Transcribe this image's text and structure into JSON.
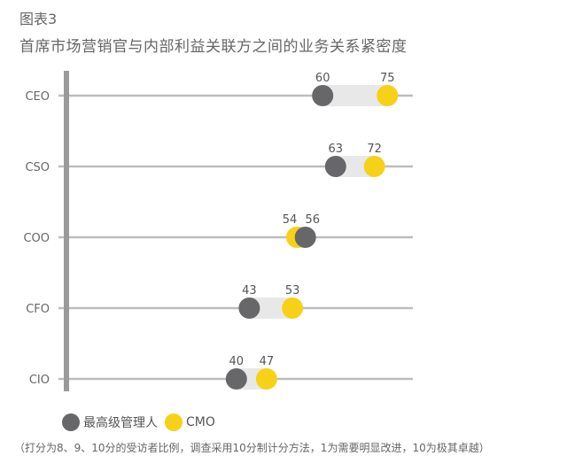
{
  "chart_data": {
    "type": "dumbbell",
    "title": "图表3",
    "subtitle": "首席市场营销官与内部利益关联方之间的业务关系紧密度",
    "categories": [
      "CEO",
      "CSO",
      "COO",
      "CFO",
      "CIO"
    ],
    "series": [
      {
        "name": "最高级管理人",
        "color": "#676769",
        "values": [
          60,
          63,
          56,
          43,
          40
        ]
      },
      {
        "name": "CMO",
        "color": "#f7d117",
        "values": [
          75,
          72,
          54,
          53,
          47
        ]
      }
    ],
    "xlim": [
      0,
      80
    ],
    "grid": false,
    "legend_placement": "bottom-left",
    "note": "（打分为8、9、10分的受访者比例，调查采用10分制计分方法，1为需要明显改进，10为极其卓越）"
  }
}
